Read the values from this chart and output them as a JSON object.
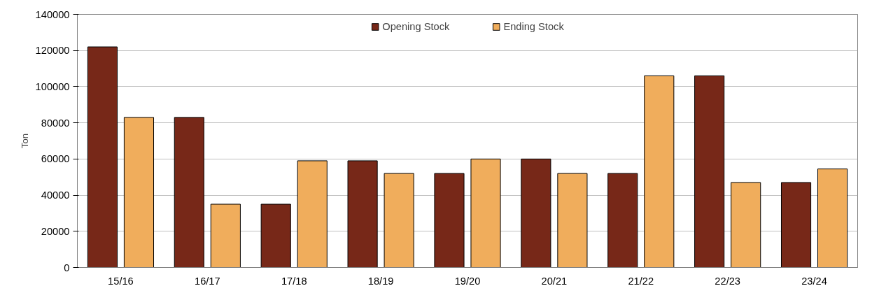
{
  "chart_data": {
    "type": "bar",
    "ylabel": "Ton",
    "categories": [
      "15/16",
      "16/17",
      "17/18",
      "18/19",
      "19/20",
      "20/21",
      "21/22",
      "22/23",
      "23/24"
    ],
    "series": [
      {
        "name": "Opening Stock",
        "color": "#772818",
        "values": [
          122000,
          83000,
          35000,
          59000,
          52000,
          60000,
          52000,
          106000,
          47000
        ]
      },
      {
        "name": "Ending Stock",
        "color": "#f0ad5c",
        "values": [
          83000,
          35000,
          59000,
          52000,
          60000,
          52000,
          106000,
          47000,
          54500
        ]
      }
    ],
    "ylim": [
      0,
      140000
    ],
    "yticks": [
      0,
      20000,
      40000,
      60000,
      80000,
      100000,
      120000,
      140000
    ],
    "grid": "y",
    "legend": "top"
  }
}
